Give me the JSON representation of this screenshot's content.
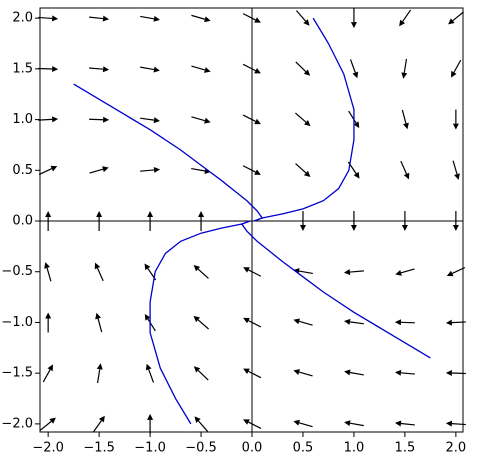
{
  "chart_data": {
    "type": "quiver",
    "xlim": [
      -2.08,
      2.07
    ],
    "ylim": [
      -2.08,
      2.1
    ],
    "xticks": [
      {
        "value": -2,
        "label": "−2.0"
      },
      {
        "value": -1.5,
        "label": "−1.5"
      },
      {
        "value": -1,
        "label": "−1.0"
      },
      {
        "value": -0.5,
        "label": "−0.5"
      },
      {
        "value": 0,
        "label": "0.0"
      },
      {
        "value": 0.5,
        "label": "0.5"
      },
      {
        "value": 1,
        "label": "1.0"
      },
      {
        "value": 1.5,
        "label": "1.5"
      },
      {
        "value": 2,
        "label": "2.0"
      }
    ],
    "yticks": [
      {
        "value": -2,
        "label": "−2.0"
      },
      {
        "value": -1.5,
        "label": "−1.5"
      },
      {
        "value": -1,
        "label": "−1.0"
      },
      {
        "value": -0.5,
        "label": "−0.5"
      },
      {
        "value": 0,
        "label": "0.0"
      },
      {
        "value": 0.5,
        "label": "0.5"
      },
      {
        "value": 1,
        "label": "1.0"
      },
      {
        "value": 1.5,
        "label": "1.5"
      },
      {
        "value": 2,
        "label": "2.0"
      }
    ],
    "field": {
      "color": "#000000",
      "x": [
        -2,
        -1.5,
        -1,
        -0.5,
        0,
        0.5,
        1,
        1.5,
        2
      ],
      "y": [
        2,
        1.5,
        1,
        0.5,
        0,
        -0.5,
        -1,
        -1.5,
        -2
      ],
      "angles": [
        [
          -4,
          -6,
          -10,
          -16,
          -27,
          -49,
          -90,
          -125,
          -141
        ],
        [
          -2,
          -5,
          -10,
          -16,
          -27,
          -44,
          -70,
          -99,
          -119
        ],
        [
          3,
          -2,
          -8,
          -16,
          -27,
          -41,
          -58,
          -75,
          -90
        ],
        [
          25,
          16,
          5,
          -10,
          -27,
          -42,
          -56,
          -66,
          -74
        ],
        [
          90,
          90,
          90,
          90,
          null,
          -90,
          -90,
          -90,
          -90
        ],
        [
          106,
          114,
          124,
          138,
          153,
          170,
          -175,
          -164,
          -155
        ],
        [
          90,
          105,
          122,
          139,
          153,
          164,
          172,
          178,
          -177
        ],
        [
          61,
          81,
          110,
          136,
          153,
          164,
          170,
          175,
          178
        ],
        [
          39,
          55,
          90,
          131,
          153,
          164,
          170,
          174,
          176
        ]
      ]
    },
    "curves": {
      "color": "#0000cc",
      "lines": [
        {
          "x": [
            -1.75,
            -1.3,
            -1,
            -0.7,
            -0.5,
            -0.3,
            -0.15,
            -0.05,
            0.05,
            0.1,
            0.02
          ],
          "y": [
            1.35,
            1.08,
            0.9,
            0.7,
            0.55,
            0.4,
            0.28,
            0.2,
            0.1,
            0.03,
            0
          ]
        },
        {
          "x": [
            0.6,
            0.75,
            0.9,
            1.0,
            1.0,
            0.95,
            0.85,
            0.7,
            0.5,
            0.3,
            0.1,
            0.02
          ],
          "y": [
            2.0,
            1.75,
            1.45,
            1.1,
            0.8,
            0.5,
            0.32,
            0.2,
            0.12,
            0.07,
            0.03,
            0
          ]
        },
        {
          "x": [
            -0.6,
            -0.75,
            -0.9,
            -1.0,
            -1.0,
            -0.95,
            -0.85,
            -0.7,
            -0.5,
            -0.3,
            -0.1,
            -0.02
          ],
          "y": [
            -2.0,
            -1.75,
            -1.45,
            -1.1,
            -0.8,
            -0.5,
            -0.32,
            -0.2,
            -0.12,
            -0.07,
            -0.03,
            0
          ]
        },
        {
          "x": [
            1.75,
            1.3,
            1,
            0.7,
            0.5,
            0.3,
            0.15,
            0.05,
            -0.05,
            -0.1,
            -0.02
          ],
          "y": [
            -1.35,
            -1.08,
            -0.9,
            -0.7,
            -0.55,
            -0.4,
            -0.28,
            -0.2,
            -0.1,
            -0.03,
            0
          ]
        }
      ]
    }
  }
}
